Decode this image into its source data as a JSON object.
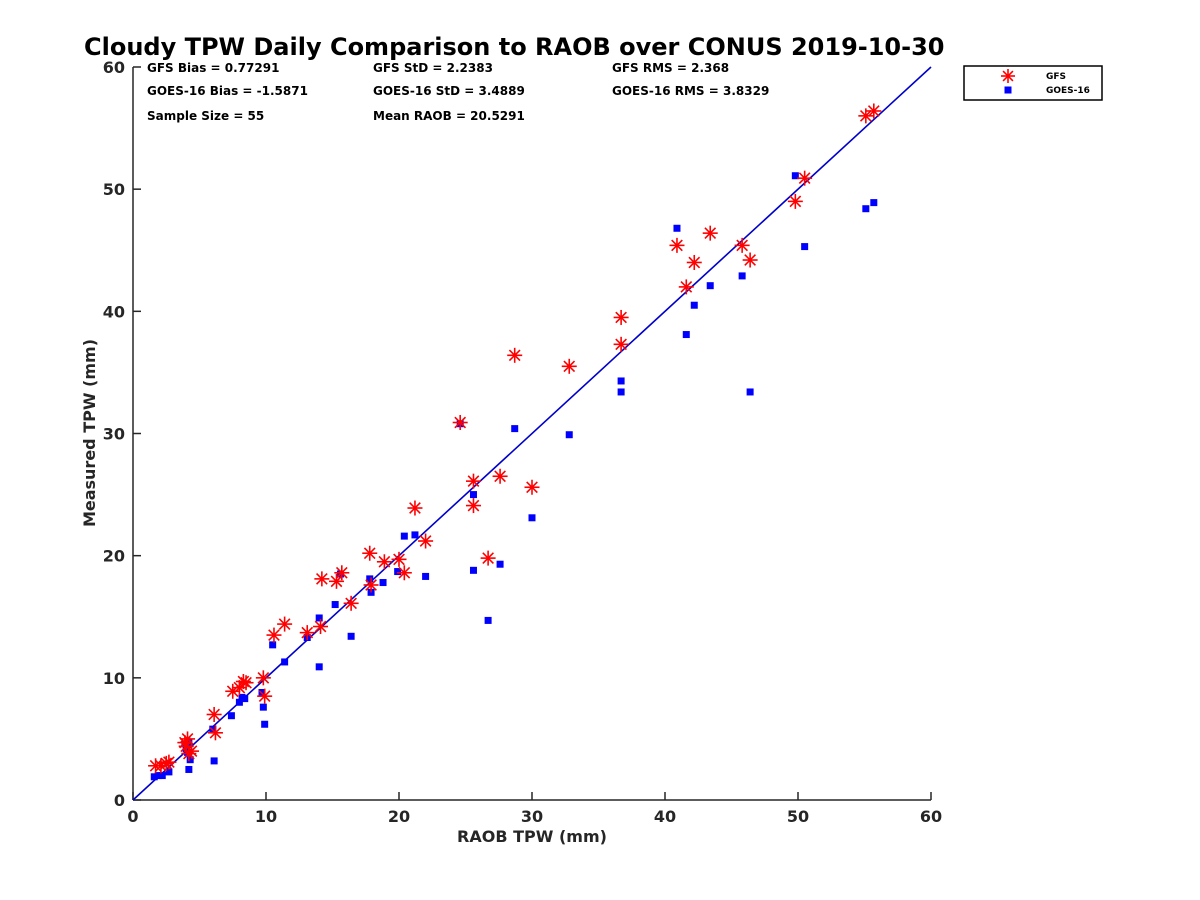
{
  "chart_data": {
    "type": "scatter",
    "title": "Cloudy TPW Daily Comparison to RAOB over CONUS 2019-10-30",
    "xlabel": "RAOB TPW (mm)",
    "ylabel": "Measured TPW (mm)",
    "xlim": [
      0,
      60
    ],
    "ylim": [
      0,
      60
    ],
    "xticks": [
      "0",
      "10",
      "20",
      "30",
      "40",
      "50",
      "60"
    ],
    "yticks": [
      "0",
      "10",
      "20",
      "30",
      "40",
      "50",
      "60"
    ],
    "grid": false,
    "legend_position": "top-right outside",
    "reference_line": {
      "x": [
        0,
        60
      ],
      "y": [
        0,
        60
      ],
      "color": "#0000cc"
    },
    "stats": {
      "gfs_bias": "GFS Bias = 0.77291",
      "gfs_std": "GFS StD = 2.2383",
      "gfs_rms": "GFS RMS = 2.368",
      "goes_bias": "GOES-16 Bias = -1.5871",
      "goes_std": "GOES-16 StD = 3.4889",
      "goes_rms": "GOES-16 RMS = 3.8329",
      "sample_size": "Sample Size = 55",
      "mean_raob": "Mean RAOB = 20.5291"
    },
    "series": [
      {
        "name": "GFS",
        "marker": "asterisk",
        "color": "#ff0000",
        "points": [
          [
            1.7,
            2.8
          ],
          [
            2.1,
            2.8
          ],
          [
            2.5,
            3.0
          ],
          [
            2.7,
            3.1
          ],
          [
            3.9,
            4.7
          ],
          [
            4.0,
            4.4
          ],
          [
            4.1,
            5.0
          ],
          [
            4.2,
            3.8
          ],
          [
            4.4,
            4.0
          ],
          [
            6.1,
            7.0
          ],
          [
            6.2,
            5.5
          ],
          [
            7.5,
            8.9
          ],
          [
            8.0,
            9.2
          ],
          [
            8.3,
            9.7
          ],
          [
            8.5,
            9.6
          ],
          [
            9.8,
            10.0
          ],
          [
            9.9,
            8.5
          ],
          [
            10.6,
            13.5
          ],
          [
            11.4,
            14.4
          ],
          [
            13.1,
            13.7
          ],
          [
            14.1,
            14.2
          ],
          [
            14.2,
            18.1
          ],
          [
            15.3,
            17.9
          ],
          [
            15.7,
            18.6
          ],
          [
            16.4,
            16.1
          ],
          [
            17.8,
            20.2
          ],
          [
            17.9,
            17.6
          ],
          [
            18.9,
            19.5
          ],
          [
            20.0,
            19.7
          ],
          [
            20.4,
            18.6
          ],
          [
            21.2,
            23.9
          ],
          [
            22.0,
            21.2
          ],
          [
            24.6,
            30.9
          ],
          [
            25.6,
            26.1
          ],
          [
            25.6,
            24.1
          ],
          [
            26.7,
            19.8
          ],
          [
            27.6,
            26.5
          ],
          [
            28.7,
            36.4
          ],
          [
            30.0,
            25.6
          ],
          [
            32.8,
            35.5
          ],
          [
            36.7,
            39.5
          ],
          [
            36.7,
            37.3
          ],
          [
            40.9,
            45.4
          ],
          [
            41.6,
            42.0
          ],
          [
            42.2,
            44.0
          ],
          [
            43.4,
            46.4
          ],
          [
            45.8,
            45.4
          ],
          [
            46.4,
            44.2
          ],
          [
            49.8,
            49.0
          ],
          [
            50.5,
            50.9
          ],
          [
            55.1,
            56.0
          ],
          [
            55.7,
            56.4
          ]
        ]
      },
      {
        "name": "GOES-16",
        "marker": "square",
        "color": "#0000ff",
        "points": [
          [
            1.6,
            1.9
          ],
          [
            1.9,
            2.0
          ],
          [
            2.2,
            2.0
          ],
          [
            2.7,
            2.3
          ],
          [
            3.9,
            4.6
          ],
          [
            4.0,
            4.2
          ],
          [
            4.1,
            3.9
          ],
          [
            4.2,
            4.7
          ],
          [
            4.3,
            3.3
          ],
          [
            4.2,
            2.5
          ],
          [
            6.0,
            5.8
          ],
          [
            6.1,
            3.2
          ],
          [
            7.4,
            6.9
          ],
          [
            8.0,
            8.0
          ],
          [
            8.2,
            8.4
          ],
          [
            8.4,
            8.3
          ],
          [
            9.7,
            8.8
          ],
          [
            9.8,
            7.6
          ],
          [
            9.9,
            6.2
          ],
          [
            10.5,
            12.7
          ],
          [
            11.4,
            11.3
          ],
          [
            13.1,
            13.3
          ],
          [
            14.0,
            14.9
          ],
          [
            14.0,
            10.9
          ],
          [
            15.2,
            16.0
          ],
          [
            15.6,
            18.5
          ],
          [
            16.4,
            13.4
          ],
          [
            17.8,
            18.1
          ],
          [
            17.9,
            17.0
          ],
          [
            18.8,
            17.8
          ],
          [
            19.9,
            18.7
          ],
          [
            20.4,
            21.6
          ],
          [
            21.2,
            21.7
          ],
          [
            22.0,
            18.3
          ],
          [
            24.6,
            30.8
          ],
          [
            25.6,
            25.0
          ],
          [
            25.6,
            18.8
          ],
          [
            26.7,
            14.7
          ],
          [
            27.6,
            19.3
          ],
          [
            28.7,
            30.4
          ],
          [
            30.0,
            23.1
          ],
          [
            32.8,
            29.9
          ],
          [
            36.7,
            34.3
          ],
          [
            36.7,
            33.4
          ],
          [
            40.9,
            46.8
          ],
          [
            41.6,
            38.1
          ],
          [
            42.2,
            40.5
          ],
          [
            43.4,
            42.1
          ],
          [
            45.8,
            42.9
          ],
          [
            46.4,
            33.4
          ],
          [
            49.8,
            51.1
          ],
          [
            50.5,
            45.3
          ],
          [
            55.1,
            48.4
          ],
          [
            55.7,
            48.9
          ]
        ]
      }
    ]
  }
}
